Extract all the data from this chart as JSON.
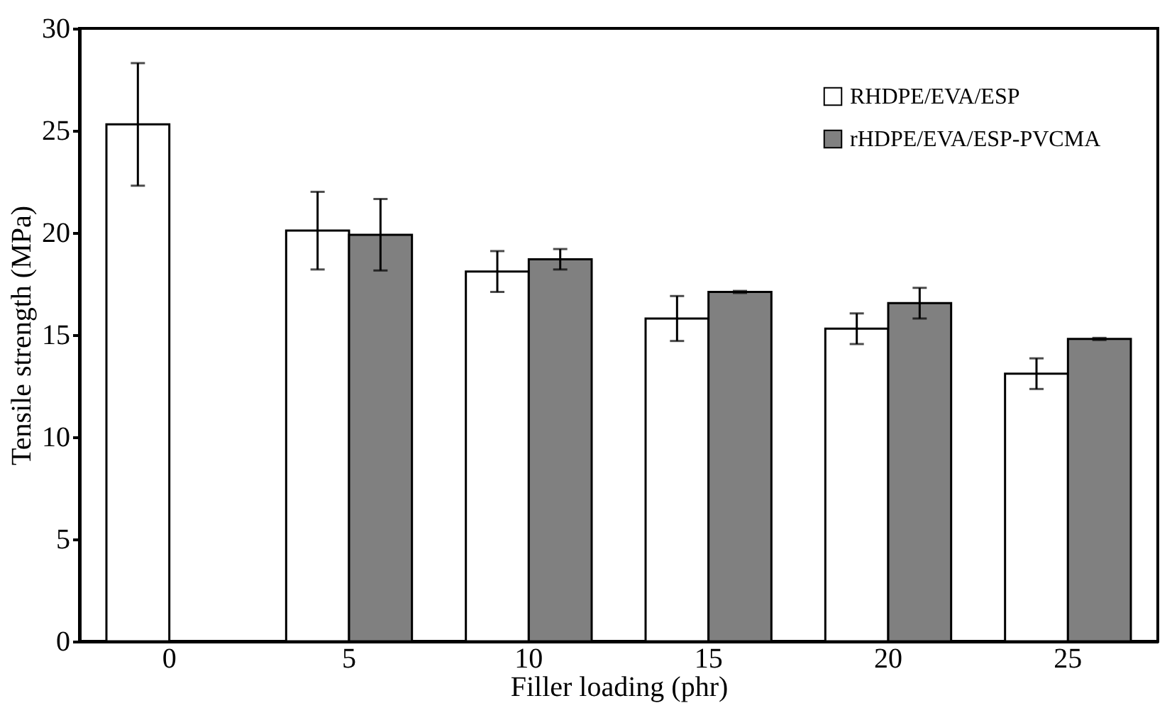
{
  "chart_data": {
    "type": "bar",
    "xlabel": "Filler loading (phr)",
    "ylabel": "Tensile strength (MPa)",
    "categories": [
      "0",
      "5",
      "10",
      "15",
      "20",
      "25"
    ],
    "series": [
      {
        "name": "RHDPE/EVA/ESP",
        "color": "#ffffff",
        "values": [
          25.3,
          20.1,
          18.1,
          15.8,
          15.3,
          13.1
        ],
        "errors": [
          3.0,
          1.9,
          1.0,
          1.1,
          0.75,
          0.75
        ]
      },
      {
        "name": "rHDPE/EVA/ESP-PVCMA",
        "color": "#808080",
        "values": [
          null,
          19.9,
          18.7,
          17.1,
          16.55,
          14.8
        ],
        "errors": [
          null,
          1.75,
          0.5,
          0.05,
          0.75,
          0.05
        ]
      }
    ],
    "ylim": [
      0,
      30
    ],
    "yticks": [
      0,
      5,
      10,
      15,
      20,
      25,
      30
    ],
    "grid": false,
    "legend": "top right"
  }
}
